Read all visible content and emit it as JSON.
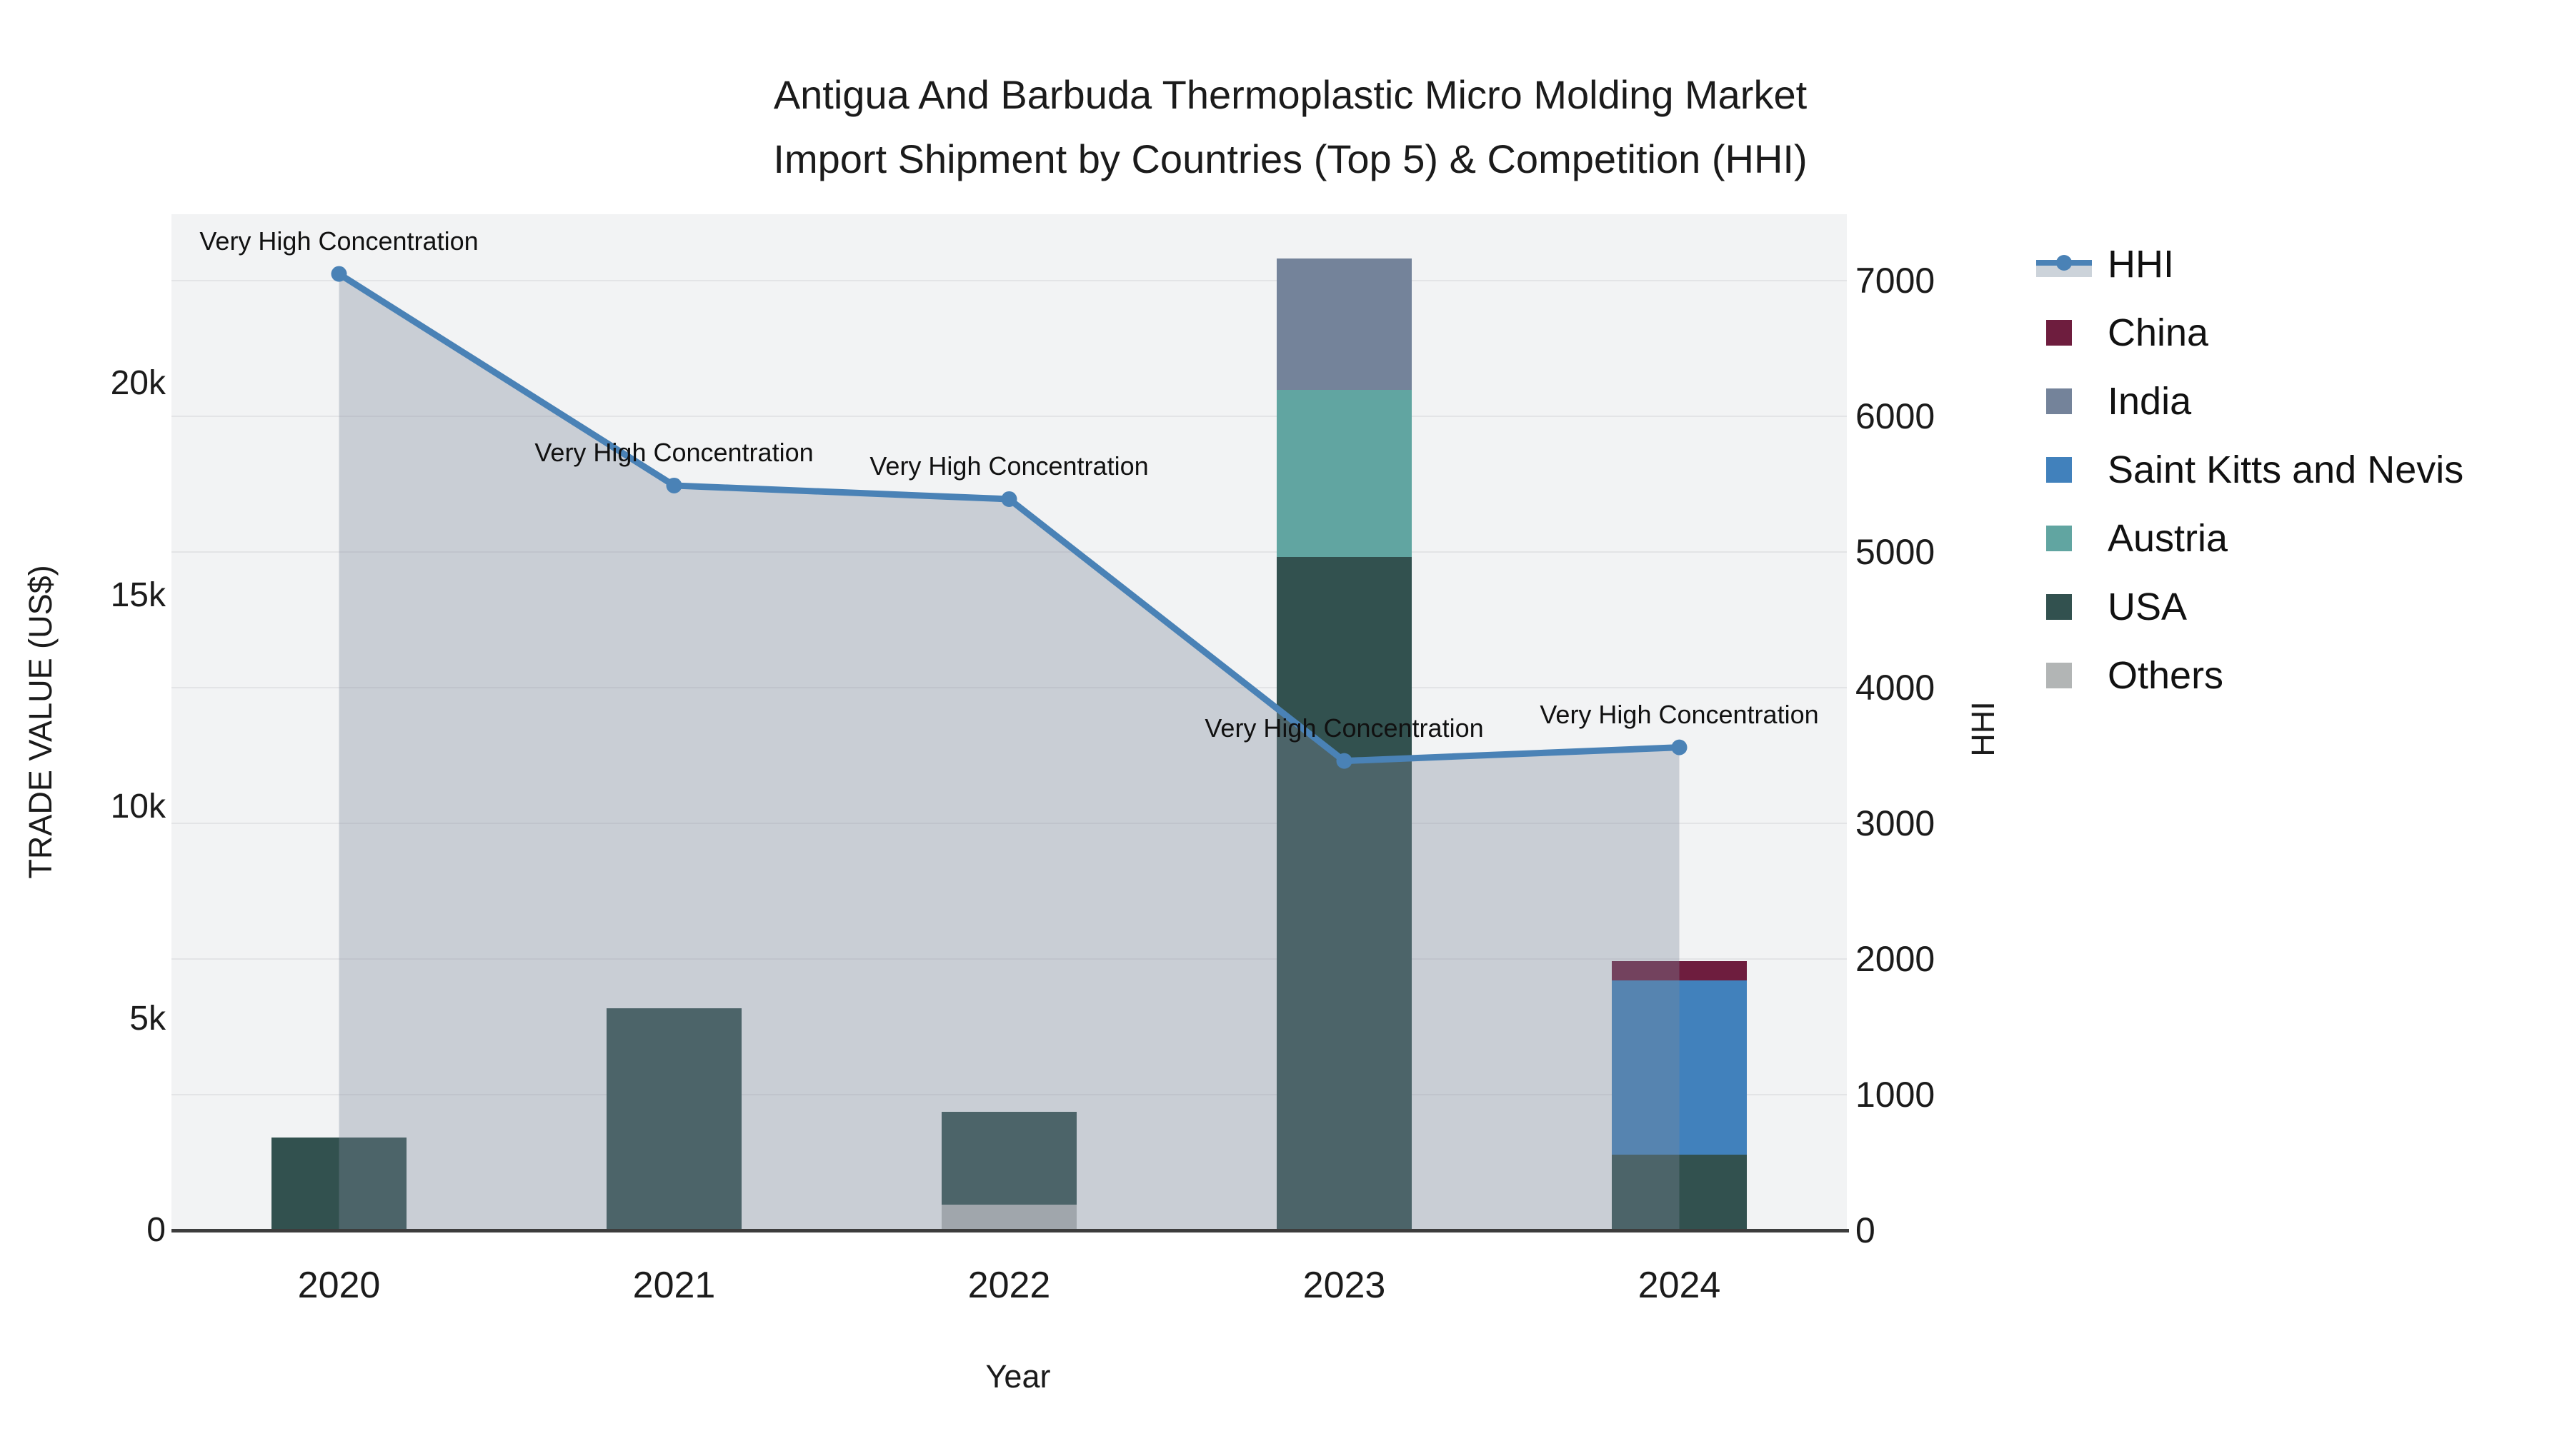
{
  "title": {
    "line1": "Antigua And Barbuda Thermoplastic Micro Molding Market",
    "line2": "Import Shipment by Countries (Top 5) & Competition (HHI)"
  },
  "chart_data": {
    "type": "combo-stacked-bar-line",
    "x": {
      "title": "Year",
      "categories": [
        "2020",
        "2021",
        "2022",
        "2023",
        "2024"
      ]
    },
    "y_left": {
      "title": "TRADE VALUE (US$)",
      "ticks": [
        {
          "label": "0",
          "value": 0
        },
        {
          "label": "5k",
          "value": 5000
        },
        {
          "label": "10k",
          "value": 10000
        },
        {
          "label": "15k",
          "value": 15000
        },
        {
          "label": "20k",
          "value": 20000
        }
      ],
      "range": [
        0,
        24000
      ],
      "grid": false
    },
    "y_right": {
      "title": "HHI",
      "ticks": [
        {
          "label": "0",
          "value": 0
        },
        {
          "label": "1000",
          "value": 1000
        },
        {
          "label": "2000",
          "value": 2000
        },
        {
          "label": "3000",
          "value": 3000
        },
        {
          "label": "4000",
          "value": 4000
        },
        {
          "label": "5000",
          "value": 5000
        },
        {
          "label": "6000",
          "value": 6000
        },
        {
          "label": "7000",
          "value": 7000
        }
      ],
      "range": [
        0,
        7490
      ],
      "gridline_step": 1000,
      "grid": true
    },
    "bars": {
      "series": [
        {
          "name": "China",
          "color": "#6E1D3E",
          "values": [
            0,
            0,
            0,
            0,
            440
          ]
        },
        {
          "name": "India",
          "color": "#74839A",
          "values": [
            0,
            0,
            0,
            3100,
            0
          ]
        },
        {
          "name": "Saint Kitts and Nevis",
          "color": "#4181BC",
          "values": [
            0,
            0,
            0,
            0,
            4130
          ]
        },
        {
          "name": "Austria",
          "color": "#61A5A1",
          "values": [
            0,
            0,
            0,
            3950,
            0
          ]
        },
        {
          "name": "USA",
          "color": "#32514F",
          "values": [
            2200,
            5250,
            2200,
            15900,
            1780
          ]
        },
        {
          "name": "Others",
          "color": "#B2B5B5",
          "values": [
            0,
            0,
            600,
            0,
            0
          ]
        }
      ],
      "stack_bottom_to_top": [
        "Others",
        "USA",
        "Austria",
        "Saint Kitts and Nevis",
        "India",
        "China"
      ]
    },
    "line": {
      "name": "HHI",
      "color": "#4A82B6",
      "area_fill": "rgba(125,137,155,0.35)",
      "values": [
        7050,
        5490,
        5390,
        3460,
        3560
      ],
      "point_annotations": [
        "Very High Concentration",
        "Very High Concentration",
        "Very High Concentration",
        "Very High Concentration",
        "Very High Concentration"
      ]
    },
    "legend": [
      "HHI",
      "China",
      "India",
      "Saint Kitts and Nevis",
      "Austria",
      "USA",
      "Others"
    ],
    "legend_position": "right"
  },
  "colors": {
    "plot_bg": "#F2F3F4",
    "gridline": "#E3E4E6",
    "axis_line": "#3D3D3D",
    "text": "#1B1B1B"
  }
}
